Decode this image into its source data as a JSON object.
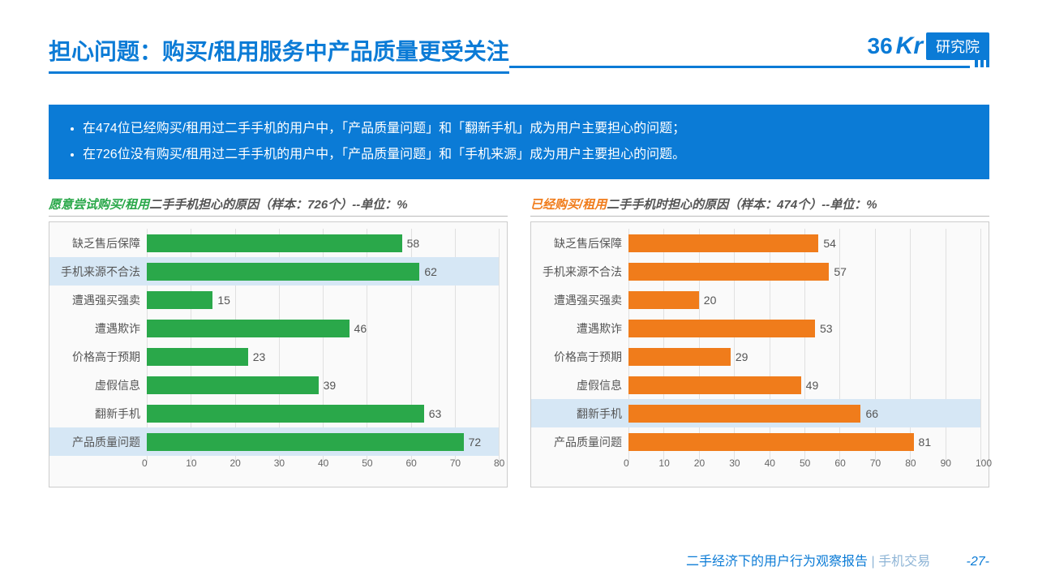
{
  "header": {
    "title": "担心问题：购买/租用服务中产品质量更受关注",
    "logo_num": "36",
    "logo_kr": "Kr",
    "logo_tag": "研究院"
  },
  "bullets": [
    "在474位已经购买/租用过二手手机的用户中，「产品质量问题」和「翻新手机」成为用户主要担心的问题；",
    "在726位没有购买/租用过二手手机的用户中，「产品质量问题」和「手机来源」成为用户主要担心的问题。"
  ],
  "chart_left": {
    "title_em": "愿意尝试购买/租用",
    "title_em_color": "#2aa84a",
    "title_rest": "二手手机担心的原因（样本：726个）--单位：%",
    "bar_color": "#2aa84a",
    "xmax": 80,
    "xticks": [
      0,
      10,
      20,
      30,
      40,
      50,
      60,
      70,
      80
    ],
    "rows": [
      {
        "label": "缺乏售后保障",
        "value": 58,
        "hl": false
      },
      {
        "label": "手机来源不合法",
        "value": 62,
        "hl": true
      },
      {
        "label": "遭遇强买强卖",
        "value": 15,
        "hl": false
      },
      {
        "label": "遭遇欺诈",
        "value": 46,
        "hl": false
      },
      {
        "label": "价格高于预期",
        "value": 23,
        "hl": false
      },
      {
        "label": "虚假信息",
        "value": 39,
        "hl": false
      },
      {
        "label": "翻新手机",
        "value": 63,
        "hl": false
      },
      {
        "label": "产品质量问题",
        "value": 72,
        "hl": true
      }
    ]
  },
  "chart_right": {
    "title_em": "已经购买/租用",
    "title_em_color": "#f07c1b",
    "title_rest": "二手手机时担心的原因（样本：474个）--单位：%",
    "bar_color": "#f07c1b",
    "xmax": 100,
    "xticks": [
      0,
      10,
      20,
      30,
      40,
      50,
      60,
      70,
      80,
      90,
      100
    ],
    "rows": [
      {
        "label": "缺乏售后保障",
        "value": 54,
        "hl": false
      },
      {
        "label": "手机来源不合法",
        "value": 57,
        "hl": false
      },
      {
        "label": "遭遇强买强卖",
        "value": 20,
        "hl": false
      },
      {
        "label": "遭遇欺诈",
        "value": 53,
        "hl": false
      },
      {
        "label": "价格高于预期",
        "value": 29,
        "hl": false
      },
      {
        "label": "虚假信息",
        "value": 49,
        "hl": false
      },
      {
        "label": "翻新手机",
        "value": 66,
        "hl": true
      },
      {
        "label": "产品质量问题",
        "value": 81,
        "hl": false
      }
    ]
  },
  "footer": {
    "t1": "二手经济下的用户行为观察报告",
    "sep": "|",
    "t2": "手机交易",
    "page": "-27-"
  }
}
